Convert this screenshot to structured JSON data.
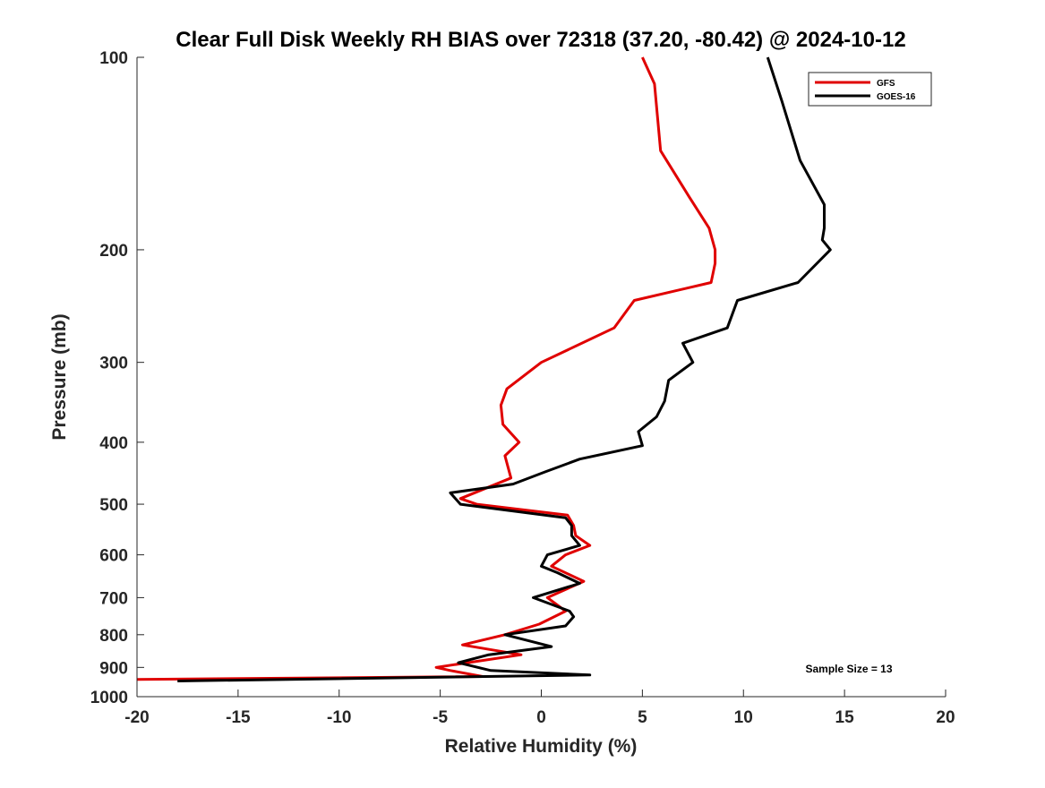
{
  "chart_data": {
    "type": "line",
    "title": "Clear Full Disk Weekly RH BIAS over 72318 (37.20, -80.42) @ 2024-10-12",
    "xlabel": "Relative Humidity (%)",
    "ylabel": "Pressure (mb)",
    "xlim": [
      -20,
      20
    ],
    "ylim": [
      100,
      1000
    ],
    "y_scale": "log",
    "y_reversed": true,
    "x_ticks": [
      -20,
      -15,
      -10,
      -5,
      0,
      5,
      10,
      15,
      20
    ],
    "y_ticks": [
      100,
      200,
      300,
      400,
      500,
      600,
      700,
      800,
      900,
      1000
    ],
    "grid": false,
    "legend": {
      "placement": "top-right"
    },
    "annotation": "Sample Size = 13",
    "series": [
      {
        "name": "GFS",
        "color": "#e00000",
        "x": [
          5.0,
          5.6,
          5.9,
          7.3,
          8.3,
          8.6,
          8.6,
          8.4,
          4.6,
          3.6,
          0.0,
          -1.7,
          -2.0,
          -1.9,
          -1.1,
          -1.8,
          -1.5,
          -4.0,
          -3.2,
          1.3,
          1.6,
          1.7,
          2.4,
          1.2,
          0.5,
          2.1,
          0.3,
          1.2,
          -0.1,
          -1.8,
          -3.9,
          -1.0,
          -5.2,
          -4.5,
          -2.9,
          -20.0
        ],
        "y": [
          100,
          110,
          140,
          165,
          185,
          200,
          210,
          225,
          240,
          265,
          300,
          330,
          350,
          375,
          400,
          420,
          455,
          490,
          500,
          520,
          540,
          560,
          580,
          600,
          625,
          660,
          700,
          735,
          770,
          800,
          830,
          860,
          900,
          910,
          930,
          940
        ]
      },
      {
        "name": "GOES-16",
        "color": "#000000",
        "x": [
          11.2,
          11.9,
          12.8,
          14.0,
          14.0,
          13.9,
          14.3,
          12.7,
          9.7,
          9.2,
          7.0,
          7.5,
          6.3,
          6.1,
          5.7,
          4.8,
          5.0,
          1.9,
          0.2,
          -1.4,
          -4.5,
          -4.0,
          1.2,
          1.5,
          1.5,
          1.9,
          0.3,
          0.0,
          0.8,
          1.9,
          -0.4,
          1.4,
          1.6,
          1.2,
          -1.8,
          0.5,
          -2.6,
          -4.1,
          -2.5,
          2.4,
          -18.0
        ],
        "y": [
          100,
          117,
          145,
          170,
          185,
          193,
          200,
          225,
          240,
          265,
          280,
          300,
          320,
          345,
          365,
          385,
          405,
          425,
          445,
          465,
          480,
          500,
          525,
          540,
          560,
          580,
          600,
          625,
          640,
          665,
          700,
          735,
          750,
          775,
          800,
          835,
          860,
          885,
          910,
          925,
          945
        ]
      }
    ]
  }
}
